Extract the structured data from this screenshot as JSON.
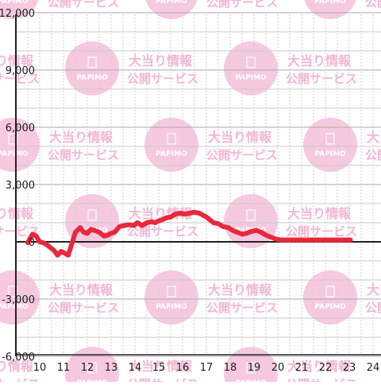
{
  "watermark": {
    "circle_text": "PAPIMO",
    "line1": "大当り情報",
    "line2": "公開サービス",
    "color": "#f7c9e0",
    "text_color": "#f4b6d3"
  },
  "colors": {
    "series": "#e8283c",
    "axis": "#222222",
    "grid": "#c9c9c9",
    "grid_minor": "#cfcfcf",
    "tick_text": "#222222"
  },
  "chart_data": {
    "type": "line",
    "ylim": [
      -6000,
      12000
    ],
    "xlim": [
      9.5,
      24.3
    ],
    "yticks": [
      -6000,
      -3000,
      0,
      3000,
      6000,
      9000,
      12000
    ],
    "ytick_labels": [
      "-6,000",
      "-3,000",
      "0",
      "3,000",
      "6,000",
      "9,000",
      "12,000"
    ],
    "xticks": [
      10,
      11,
      12,
      13,
      14,
      15,
      16,
      17,
      18,
      19,
      20,
      21,
      22,
      23,
      24
    ],
    "xtick_labels": [
      "10",
      "11",
      "12",
      "13",
      "14",
      "15",
      "16",
      "17",
      "18",
      "19",
      "20",
      "21",
      "22",
      "23",
      "24"
    ],
    "grid": true,
    "series": [
      {
        "x": [
          9.5,
          9.7,
          9.85,
          10.0,
          10.15,
          10.3,
          10.6,
          10.75,
          10.9,
          11.05,
          11.2,
          11.35,
          11.5,
          11.7,
          11.85,
          12.0,
          12.15,
          12.3,
          12.5,
          12.7,
          12.85,
          13.0,
          13.15,
          13.35,
          13.55,
          13.75,
          13.95,
          14.1,
          14.3,
          14.5,
          14.7,
          14.85,
          15.0,
          15.15,
          15.3,
          15.5,
          15.7,
          15.9,
          16.1,
          16.3,
          16.5,
          16.7,
          16.85,
          17.0,
          17.15,
          17.3,
          17.5,
          17.7,
          17.9,
          18.1,
          18.3,
          18.5,
          18.7,
          18.9,
          19.1,
          19.3,
          19.5,
          19.7,
          19.9,
          20.1,
          20.3,
          20.5,
          20.7,
          20.9,
          21.1,
          21.3,
          21.5,
          21.7,
          21.9,
          22.1,
          22.3,
          22.5,
          22.7,
          22.9,
          23.05
        ],
        "y": [
          -50,
          400,
          300,
          0,
          -50,
          -150,
          -450,
          -700,
          -500,
          -600,
          -700,
          -100,
          500,
          750,
          500,
          450,
          650,
          600,
          500,
          300,
          350,
          450,
          500,
          800,
          850,
          900,
          850,
          1000,
          850,
          1000,
          1050,
          1000,
          1100,
          1150,
          1250,
          1300,
          1450,
          1500,
          1450,
          1500,
          1550,
          1500,
          1400,
          1300,
          1150,
          1000,
          950,
          800,
          750,
          600,
          500,
          400,
          450,
          550,
          600,
          500,
          350,
          250,
          150,
          100,
          100,
          100,
          100,
          100,
          100,
          100,
          100,
          100,
          100,
          100,
          100,
          100,
          100,
          100,
          100
        ]
      }
    ]
  }
}
